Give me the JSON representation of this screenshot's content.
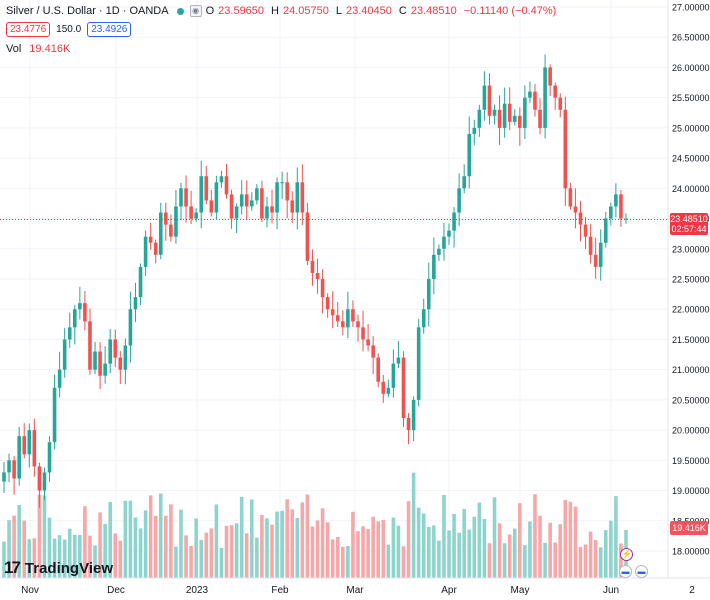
{
  "legend": {
    "title": "Silver / U.S. Dollar · 1D · OANDA",
    "open_key": "O",
    "open": "23.59650",
    "high_key": "H",
    "high": "24.05750",
    "low_key": "L",
    "low": "23.40450",
    "close_key": "C",
    "close": "23.48510",
    "change": "−0.11140 (−0.47%)",
    "eye_icon": "eye-icon",
    "status_color": "#26a69a"
  },
  "bid_ask": {
    "sell": "23.4776",
    "spread": "150.0",
    "buy": "23.4926"
  },
  "volume": {
    "label": "Vol",
    "value": "19.416K"
  },
  "price_axis": {
    "ticks": [
      "27.00000",
      "26.50000",
      "26.00000",
      "25.50000",
      "25.00000",
      "24.50000",
      "24.00000",
      "23.50000",
      "23.00000",
      "22.50000",
      "22.00000",
      "21.50000",
      "21.00000",
      "20.50000",
      "20.00000",
      "19.50000",
      "19.00000",
      "18.50000",
      "18.00000"
    ],
    "last_price": "23.48510",
    "countdown": "02:57:44",
    "volume_tag": "19.416K"
  },
  "time_axis": {
    "labels": [
      "Nov",
      "Dec",
      "2023",
      "Feb",
      "Mar",
      "Apr",
      "May",
      "Jun",
      "2"
    ]
  },
  "branding": {
    "logo_text": "TradingView",
    "logo_mark": "17"
  },
  "events": {
    "bolt_icon": "⚡",
    "flag_icon": "flag-icon"
  },
  "colors": {
    "up": "#26a69a",
    "down": "#ef5350",
    "up_vol": "#8ed4cd",
    "down_vol": "#f5a8a8",
    "last_line": "#f23645"
  },
  "chart_data": {
    "type": "candlestick",
    "title": "Silver / U.S. Dollar · 1D · OANDA",
    "y_range": [
      17.8,
      27.1
    ],
    "x_labels": [
      "Nov",
      "Dec",
      "2023",
      "Feb",
      "Mar",
      "Apr",
      "May",
      "Jun"
    ],
    "last_price": 23.4851,
    "close_series_approx": [
      19.3,
      19.5,
      19.2,
      19.9,
      19.6,
      20.0,
      19.4,
      19.0,
      19.3,
      19.8,
      20.7,
      21.0,
      21.5,
      21.7,
      22.0,
      22.1,
      21.8,
      21.0,
      21.3,
      20.9,
      21.1,
      21.5,
      21.2,
      21.0,
      21.4,
      22.0,
      22.2,
      22.7,
      23.2,
      23.1,
      22.9,
      23.6,
      23.4,
      23.2,
      23.7,
      24.0,
      23.7,
      23.5,
      23.6,
      24.2,
      23.8,
      23.6,
      24.1,
      24.2,
      23.9,
      23.5,
      23.7,
      23.9,
      23.7,
      23.8,
      24.0,
      23.5,
      23.7,
      23.6,
      24.1,
      24.1,
      23.8,
      23.6,
      24.1,
      23.6,
      22.8,
      22.6,
      22.5,
      22.2,
      22.0,
      21.9,
      21.8,
      21.7,
      22.0,
      21.8,
      21.7,
      21.5,
      21.4,
      21.2,
      20.8,
      20.6,
      20.7,
      21.1,
      21.2,
      20.2,
      20.0,
      20.5,
      21.7,
      22.0,
      22.5,
      22.9,
      23.0,
      23.2,
      23.3,
      23.6,
      24.0,
      24.2,
      24.9,
      25.0,
      25.3,
      25.7,
      25.2,
      25.3,
      25.0,
      25.4,
      25.1,
      25.2,
      25.0,
      25.5,
      25.6,
      25.3,
      25.0,
      26.0,
      25.7,
      25.5,
      25.3,
      24.0,
      23.7,
      23.6,
      23.4,
      23.2,
      22.9,
      22.7,
      23.1,
      23.5,
      23.7,
      23.9,
      23.5,
      23.5
    ],
    "volume_unit": "K",
    "last_volume": 19.416
  }
}
